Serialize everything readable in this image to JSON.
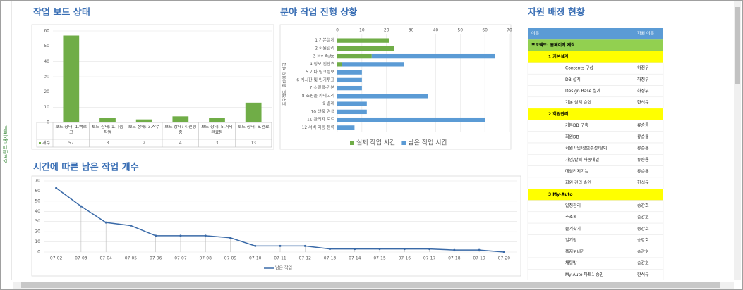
{
  "sidebar": "스프린트 대시보드",
  "chart_data": [
    {
      "type": "bar",
      "title": "작업 보드 상태",
      "categories": [
        "보드 상태: 1.백로그",
        "보드 상태: 1.다음 작업",
        "보드 상태: 3.착수",
        "보드 상태: 4.진행 중",
        "보드 상태: 5.거의 완료됨",
        "보드 상태: 6.완료"
      ],
      "series": [
        {
          "name": "개수",
          "color": "#70ad47",
          "values": [
            57,
            3,
            2,
            4,
            3,
            13
          ]
        }
      ],
      "ylim": [
        0,
        60
      ],
      "yticks": [
        0,
        10,
        20,
        30,
        40,
        50,
        60
      ],
      "grid": true,
      "data_table": true
    },
    {
      "type": "hbar",
      "title": "분야 작업 진행 상황",
      "y_label": "프로젝트: 홈페이지 제작",
      "categories": [
        "1 기본설계",
        "2 회원관리",
        "3 My-Auto",
        "4 정보 컨텐츠",
        "5 기타 링크정보",
        "6 게시판 및 인기투표",
        "7 쇼핑몰-기본",
        "8 쇼핑몰 카테고리",
        "9 결제",
        "10 상품 검색",
        "11 관리자 모드",
        "12 서버 이동 등록"
      ],
      "series": [
        {
          "name": "실제 작업 시간",
          "color": "#70ad47",
          "values": [
            21,
            23,
            14,
            2,
            0,
            0,
            0,
            0,
            0,
            0,
            0,
            0
          ]
        },
        {
          "name": "남은 작업 시간",
          "color": "#5b9bd5",
          "values": [
            0,
            0,
            50,
            25,
            10,
            10,
            10,
            37,
            12,
            12,
            60,
            7
          ]
        }
      ],
      "xlim": [
        0,
        70
      ],
      "xticks": [
        0,
        10,
        20,
        30,
        40,
        50,
        60,
        70
      ],
      "stacked": true,
      "grid": true,
      "legend": "bottom"
    },
    {
      "type": "line",
      "title": "시간에 따른 남은 작업 개수",
      "x": [
        "07-02",
        "07-03",
        "07-04",
        "07-05",
        "07-06",
        "07-07",
        "07-08",
        "07-09",
        "07-10",
        "07-11",
        "07-12",
        "07-13",
        "07-14",
        "07-15",
        "07-16",
        "07-17",
        "07-18",
        "07-19",
        "07-20"
      ],
      "series": [
        {
          "name": "남은 작업",
          "color": "#3a6aa8",
          "values": [
            63,
            45,
            29,
            26,
            16,
            16,
            16,
            14,
            6,
            6,
            6,
            3,
            3,
            3,
            3,
            3,
            2,
            2,
            0
          ]
        }
      ],
      "ylim": [
        0,
        70
      ],
      "yticks": [
        0,
        10,
        20,
        30,
        40,
        50,
        60,
        70
      ],
      "grid": true,
      "legend": "bottom"
    }
  ],
  "table": {
    "title": "자원 배정 현황",
    "header": [
      "이름",
      "자원 이름"
    ],
    "project": "프로젝트: 홈페이지 제작",
    "groups": [
      {
        "name": "1 기본설계",
        "rows": [
          [
            "Contents 구성",
            "하정우"
          ],
          [
            "DB 설계",
            "하정우"
          ],
          [
            "Design Base 설계",
            "하정우"
          ],
          [
            "기본 설계 승인",
            "한석규"
          ]
        ]
      },
      {
        "name": "2 회원관리",
        "rows": [
          [
            "기본DB 구축",
            "류승룡"
          ],
          [
            "회원DB",
            "류승룡"
          ],
          [
            "회원가입/정보수정/탈퇴",
            "류승룡"
          ],
          [
            "가입/탈퇴 자동메일",
            "류승룡"
          ],
          [
            "메일리지기능",
            "류승룡"
          ],
          [
            "회원 관리 승인",
            "한석규"
          ]
        ]
      },
      {
        "name": "3 My-Auto",
        "rows": [
          [
            "일정관리",
            "송강호"
          ],
          [
            "주소록",
            "송강호"
          ],
          [
            "즐겨찾기",
            "송강호"
          ],
          [
            "일기장",
            "송강호"
          ],
          [
            "쪽지보내기",
            "송강호"
          ],
          [
            "채팅방",
            "송강호"
          ],
          [
            "My-Auto 파트1 승인",
            "한석규"
          ]
        ]
      }
    ]
  }
}
